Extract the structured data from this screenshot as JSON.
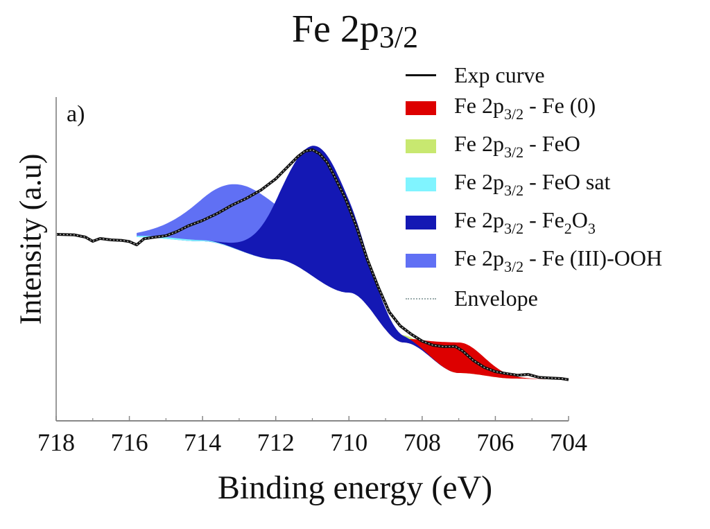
{
  "chart_data": {
    "type": "area",
    "title_main": "Fe 2p",
    "title_sub": "3/2",
    "panel_label": "a)",
    "xlabel": "Binding energy (eV)",
    "ylabel": "Intensity (a.u)",
    "xlim": [
      718,
      704
    ],
    "x_reversed": true,
    "ylim": [
      0,
      100
    ],
    "x_ticks": [
      "718",
      "716",
      "714",
      "712",
      "710",
      "708",
      "706",
      "704"
    ],
    "x_tick_values": [
      718,
      716,
      714,
      712,
      710,
      708,
      706,
      704
    ],
    "grid": false,
    "legend_position": "top-right",
    "background": {
      "description_values": "Shirley-type baseline under components",
      "points": [
        [
          715.8,
          58
        ],
        [
          714,
          56.5
        ],
        [
          712,
          50
        ],
        [
          710,
          38
        ],
        [
          708.5,
          20
        ],
        [
          707,
          9
        ],
        [
          705.5,
          7
        ],
        [
          704,
          6.5
        ]
      ]
    },
    "series": [
      {
        "key": "exp",
        "name_main": "Exp curve",
        "name_sub": "",
        "name_tail": "",
        "name_tail_sub": "",
        "name_tail_end": "",
        "kind": "line",
        "color": "#111111"
      },
      {
        "key": "fe0",
        "name_main": "Fe 2p",
        "name_sub": "3/2",
        "name_tail": " - Fe (0)",
        "name_tail_sub": "",
        "name_tail_end": "",
        "kind": "fill",
        "color": "#dd0000",
        "center": 707.0,
        "height": 11,
        "fwhm": 1.6
      },
      {
        "key": "feo",
        "name_main": "Fe 2p",
        "name_sub": "3/2",
        "name_tail": " - FeO",
        "name_tail_sub": "",
        "name_tail_end": "",
        "kind": "fill",
        "color": "#c8e870",
        "center": 709.4,
        "height": 3.5,
        "fwhm": 2.8
      },
      {
        "key": "feosat",
        "name_main": "Fe 2p",
        "name_sub": "3/2",
        "name_tail": " - FeO sat",
        "name_tail_sub": "",
        "name_tail_end": "",
        "kind": "fill",
        "color": "#80f4ff",
        "center": 715.0,
        "height": 0.6,
        "fwhm": 2.5
      },
      {
        "key": "fe2o3",
        "name_main": "Fe 2p",
        "name_sub": "3/2",
        "name_tail": " -   Fe",
        "name_tail_sub": "2",
        "name_tail_end": "O₃",
        "kind": "fill",
        "color": "#1418b4",
        "center": 710.8,
        "height": 48,
        "fwhm": 2.2
      },
      {
        "key": "feooh",
        "name_main": "Fe 2p",
        "name_sub": "3/2",
        "name_tail": " - Fe (III)-OOH",
        "name_tail_sub": "",
        "name_tail_end": "",
        "kind": "fill",
        "color": "#6070f4",
        "center": 712.8,
        "height": 24,
        "fwhm": 3.0
      },
      {
        "key": "env",
        "name_main": "Envelope",
        "name_sub": "",
        "name_tail": "",
        "name_tail_sub": "",
        "name_tail_end": "",
        "kind": "dotted",
        "color": "#aaaaaa"
      }
    ],
    "exp_curve_points": [
      [
        718,
        59
      ],
      [
        717.5,
        58.8
      ],
      [
        717.2,
        58
      ],
      [
        717,
        56.5
      ],
      [
        716.8,
        57.5
      ],
      [
        716.5,
        57
      ],
      [
        716.2,
        56.8
      ],
      [
        716,
        56.4
      ],
      [
        715.8,
        55.2
      ],
      [
        715.6,
        57.4
      ],
      [
        715.3,
        58
      ],
      [
        715,
        58.5
      ],
      [
        714.7,
        60
      ],
      [
        714.4,
        62
      ],
      [
        714,
        64
      ],
      [
        713.6,
        66.5
      ],
      [
        713.2,
        69.5
      ],
      [
        712.8,
        72
      ],
      [
        712.4,
        75
      ],
      [
        712,
        79
      ],
      [
        711.7,
        83
      ],
      [
        711.4,
        87
      ],
      [
        711.2,
        89
      ],
      [
        711.0,
        89.5
      ],
      [
        710.8,
        88
      ],
      [
        710.6,
        85
      ],
      [
        710.4,
        80
      ],
      [
        710.1,
        72
      ],
      [
        709.8,
        62
      ],
      [
        709.5,
        50
      ],
      [
        709.2,
        40
      ],
      [
        708.9,
        31
      ],
      [
        708.6,
        26
      ],
      [
        708.3,
        23
      ],
      [
        708.0,
        20.5
      ],
      [
        707.7,
        19
      ],
      [
        707.4,
        18.5
      ],
      [
        707.1,
        18.6
      ],
      [
        706.9,
        17
      ],
      [
        706.6,
        13.5
      ],
      [
        706.3,
        11
      ],
      [
        706,
        9.5
      ],
      [
        705.7,
        8.8
      ],
      [
        705.4,
        8.2
      ],
      [
        705.1,
        8.5
      ],
      [
        704.8,
        7.4
      ],
      [
        704.5,
        7.2
      ],
      [
        704.2,
        7.0
      ],
      [
        704,
        6.6
      ]
    ]
  }
}
